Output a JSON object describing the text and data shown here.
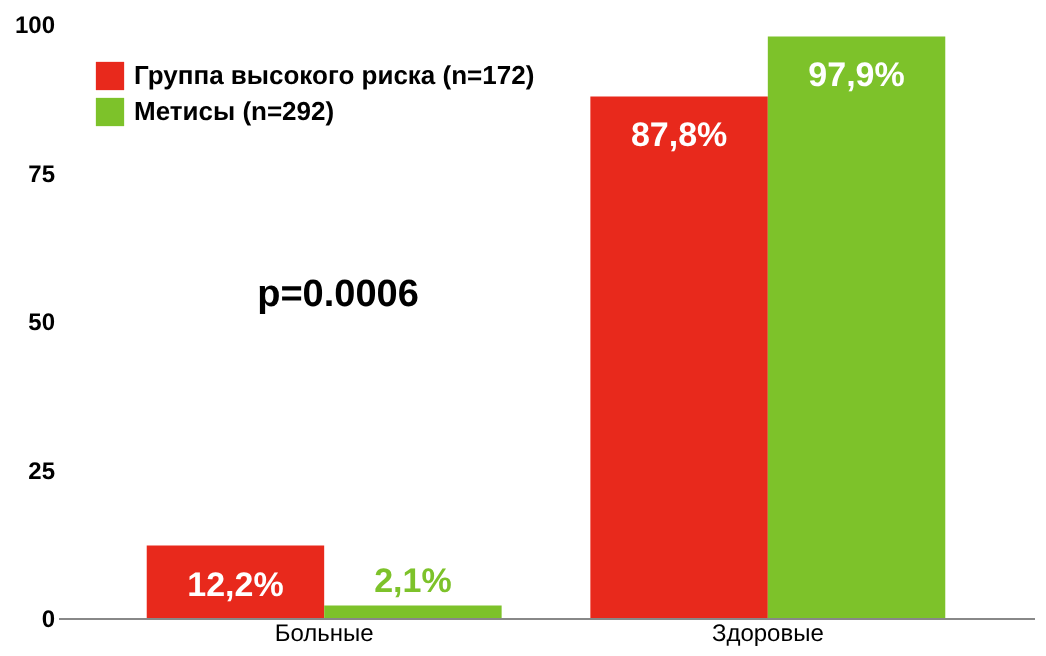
{
  "chart_data": {
    "type": "bar",
    "categories": [
      "Больные",
      "Здоровые"
    ],
    "series": [
      {
        "name": "Группа высокого риска (n=172)",
        "color": "#e8291c",
        "values": [
          12.2,
          87.8
        ],
        "value_labels": [
          "12,2%",
          "87,8%"
        ]
      },
      {
        "name": "Метисы (n=292)",
        "color": "#7dc22a",
        "values": [
          2.1,
          97.9
        ],
        "value_labels": [
          "2,1%",
          "97,9%"
        ]
      }
    ],
    "ylim": [
      0,
      100
    ],
    "yticks": [
      0,
      25,
      50,
      75,
      100
    ],
    "grid": false,
    "legend": "top left",
    "annotations": [
      "p=0.0006"
    ]
  }
}
